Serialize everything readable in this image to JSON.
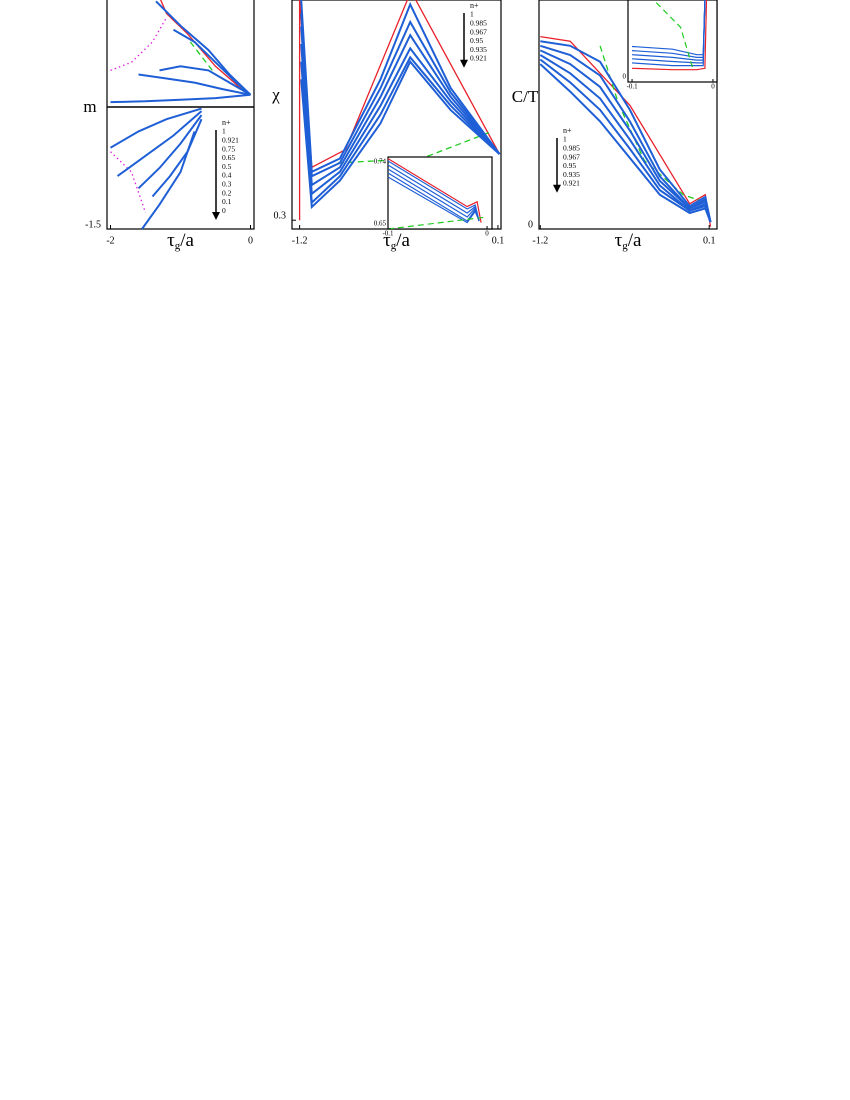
{
  "chart_data": [
    {
      "type": "line",
      "ylabel": "m",
      "xlabel": [
        "τ",
        "g",
        "/a"
      ],
      "xlim": [
        -2.05,
        0.05
      ],
      "ylim": [
        -1.5,
        1.5
      ],
      "xticks": [
        -2,
        0
      ],
      "yticks": [
        -1.5
      ],
      "legend_title": "n+",
      "series": [
        {
          "name": "1",
          "color": "#1f5fd6",
          "x": [
            -1.35,
            -1.0,
            -0.6,
            -0.3,
            0
          ],
          "values": [
            1.3,
            1.0,
            0.7,
            0.4,
            0.15
          ]
        },
        {
          "name": "0.921",
          "color": "#1f5fd6",
          "x": [
            -1.1,
            -0.8,
            -0.5,
            -0.2,
            0
          ],
          "values": [
            0.95,
            0.8,
            0.55,
            0.3,
            0.15
          ]
        },
        {
          "name": "0.75",
          "color": "#1f5fd6",
          "x": [
            -1.3,
            -1.0,
            -0.6,
            -0.3,
            0
          ],
          "values": [
            0.45,
            0.5,
            0.45,
            0.3,
            0.15
          ]
        },
        {
          "name": "0.65",
          "color": "#1f5fd6",
          "x": [
            -1.6,
            -1.2,
            -0.8,
            -0.4,
            0
          ],
          "values": [
            0.4,
            0.35,
            0.3,
            0.22,
            0.15
          ]
        },
        {
          "name": "0.5",
          "color": "#1f5fd6",
          "x": [
            -2,
            -1.5,
            -1,
            -0.5,
            0
          ],
          "values": [
            0.06,
            0.07,
            0.09,
            0.11,
            0.15
          ]
        },
        {
          "name": "0.4",
          "color": "#1f5fd6",
          "x": [
            -2,
            -1.6,
            -1.2,
            -0.7
          ],
          "values": [
            -0.5,
            -0.3,
            -0.15,
            -0.02
          ]
        },
        {
          "name": "0.3",
          "color": "#1f5fd6",
          "x": [
            -1.9,
            -1.5,
            -1.1,
            -0.7
          ],
          "values": [
            -0.85,
            -0.6,
            -0.35,
            -0.05
          ]
        },
        {
          "name": "0.2",
          "color": "#1f5fd6",
          "x": [
            -1.6,
            -1.3,
            -1.0,
            -0.7
          ],
          "values": [
            -1.0,
            -0.75,
            -0.45,
            -0.1
          ]
        },
        {
          "name": "0.1",
          "color": "#1f5fd6",
          "x": [
            -1.4,
            -1.15,
            -0.9,
            -0.7
          ],
          "values": [
            -1.1,
            -0.85,
            -0.55,
            -0.15
          ]
        },
        {
          "name": "0",
          "color": "#1f5fd6",
          "x": [
            -1.55,
            -1.3,
            -1.0,
            -0.8
          ],
          "values": [
            -1.5,
            -1.2,
            -0.8,
            -0.3
          ]
        }
      ],
      "curves": [
        {
          "color": "#e8202a",
          "style": "solid",
          "x": [
            -1.3,
            -1.2,
            -0.9,
            -0.5,
            -0.1,
            0
          ],
          "values": [
            1.35,
            1.15,
            0.9,
            0.5,
            0.2,
            0.15
          ]
        },
        {
          "color": "#22cc22",
          "style": "dashed",
          "x": [
            -0.86,
            -0.5,
            0
          ],
          "values": [
            0.8,
            0.4,
            0.15
          ]
        },
        {
          "color": "#e020e0",
          "style": "dotted",
          "x": [
            -2,
            -1.7,
            -1.4,
            -1.2
          ],
          "values": [
            0.45,
            0.55,
            0.8,
            1.1
          ]
        },
        {
          "color": "#e020e0",
          "style": "dotted",
          "x": [
            -2,
            -1.7,
            -1.5
          ],
          "values": [
            -0.55,
            -0.8,
            -1.3
          ]
        }
      ]
    },
    {
      "type": "line",
      "ylabel": "χ",
      "xlabel": [
        "τ",
        "g",
        "/a"
      ],
      "xlim": [
        -1.25,
        0.12
      ],
      "ylim": [
        0.28,
        0.8
      ],
      "xticks": [
        -1.2,
        0.1
      ],
      "yticks": [
        0.3
      ],
      "legend_title": "n+",
      "series": [
        {
          "name": "1",
          "color": "#1f5fd6",
          "x": [
            -1.19,
            -1.12,
            -0.936,
            -0.67,
            -0.475,
            -0.21,
            0.11
          ],
          "values": [
            0.8,
            0.41,
            0.44,
            0.62,
            0.79,
            0.6,
            0.45
          ]
        },
        {
          "name": "0.985",
          "color": "#1f5fd6",
          "x": [
            -1.19,
            -1.12,
            -0.936,
            -0.67,
            -0.475,
            -0.21,
            0.11
          ],
          "values": [
            0.77,
            0.4,
            0.43,
            0.6,
            0.75,
            0.59,
            0.45
          ]
        },
        {
          "name": "0.967",
          "color": "#1f5fd6",
          "x": [
            -1.19,
            -1.12,
            -0.936,
            -0.67,
            -0.475,
            -0.21,
            0.11
          ],
          "values": [
            0.74,
            0.38,
            0.42,
            0.58,
            0.72,
            0.58,
            0.45
          ]
        },
        {
          "name": "0.95",
          "color": "#1f5fd6",
          "x": [
            -1.19,
            -1.12,
            -0.936,
            -0.67,
            -0.475,
            -0.21,
            0.11
          ],
          "values": [
            0.7,
            0.36,
            0.41,
            0.56,
            0.69,
            0.57,
            0.45
          ]
        },
        {
          "name": "0.935",
          "color": "#1f5fd6",
          "x": [
            -1.19,
            -1.12,
            -0.936,
            -0.67,
            -0.475,
            -0.21,
            0.11
          ],
          "values": [
            0.66,
            0.34,
            0.4,
            0.54,
            0.67,
            0.56,
            0.45
          ]
        },
        {
          "name": "0.921",
          "color": "#1f5fd6",
          "x": [
            -1.19,
            -1.12,
            -0.936,
            -0.67,
            -0.475,
            -0.21,
            0.11
          ],
          "values": [
            0.62,
            0.33,
            0.39,
            0.52,
            0.66,
            0.55,
            0.45
          ]
        }
      ],
      "curves": [
        {
          "color": "#e8202a",
          "style": "solid",
          "x": [
            -1.2,
            -1.2,
            -1.12,
            -0.9,
            -0.47,
            0.11
          ],
          "values": [
            0.3,
            0.8,
            0.42,
            0.46,
            0.82,
            0.45
          ]
        },
        {
          "color": "#22cc22",
          "style": "dashed",
          "x": [
            -0.95,
            -0.4,
            0.05
          ],
          "values": [
            0.43,
            0.44,
            0.5
          ]
        }
      ],
      "inset": {
        "xlim": [
          -0.1,
          0.005
        ],
        "ylim": [
          0.65,
          0.74
        ],
        "xticks": [
          -0.1,
          0
        ],
        "yticks": [
          0.74,
          0.65
        ],
        "curves": [
          {
            "color": "#1f5fd6",
            "style": "solid",
            "x": [
              -0.1,
              -0.02,
              -0.012,
              -0.008
            ],
            "values": [
              0.735,
              0.675,
              0.68,
              0.66
            ]
          },
          {
            "color": "#1f5fd6",
            "style": "solid",
            "x": [
              -0.1,
              -0.02,
              -0.012,
              -0.008
            ],
            "values": [
              0.73,
              0.67,
              0.678,
              0.66
            ]
          },
          {
            "color": "#1f5fd6",
            "style": "solid",
            "x": [
              -0.1,
              -0.02,
              -0.012,
              -0.008
            ],
            "values": [
              0.725,
              0.665,
              0.676,
              0.66
            ]
          },
          {
            "color": "#1f5fd6",
            "style": "solid",
            "x": [
              -0.1,
              -0.02,
              -0.012,
              -0.008
            ],
            "values": [
              0.72,
              0.66,
              0.674,
              0.66
            ]
          },
          {
            "color": "#1f5fd6",
            "style": "solid",
            "x": [
              -0.1,
              -0.02,
              -0.012,
              -0.008
            ],
            "values": [
              0.715,
              0.658,
              0.672,
              0.66
            ]
          },
          {
            "color": "#e8202a",
            "style": "solid",
            "x": [
              -0.1,
              -0.02,
              -0.01,
              -0.006
            ],
            "values": [
              0.738,
              0.678,
              0.684,
              0.658
            ]
          },
          {
            "color": "#22cc22",
            "style": "dashed",
            "x": [
              -0.1,
              0
            ],
            "values": [
              0.65,
              0.665
            ]
          }
        ]
      }
    },
    {
      "type": "line",
      "ylabel": "C/T",
      "xlabel": [
        "τ",
        "g",
        "/a"
      ],
      "xlim": [
        -1.21,
        0.16
      ],
      "ylim": [
        0,
        1
      ],
      "xticks": [
        -1.2,
        0.1
      ],
      "yticks": [
        0
      ],
      "legend_title": "n+",
      "series": [
        {
          "name": "1",
          "color": "#1f5fd6",
          "x": [
            -1.2,
            -0.97,
            -0.74,
            -0.51,
            -0.28,
            -0.05,
            0.07,
            0.11
          ],
          "values": [
            0.82,
            0.8,
            0.73,
            0.52,
            0.26,
            0.1,
            0.14,
            0.03
          ]
        },
        {
          "name": "0.985",
          "color": "#1f5fd6",
          "x": [
            -1.2,
            -0.97,
            -0.74,
            -0.51,
            -0.28,
            -0.05,
            0.07,
            0.11
          ],
          "values": [
            0.8,
            0.76,
            0.67,
            0.47,
            0.23,
            0.09,
            0.13,
            0.03
          ]
        },
        {
          "name": "0.967",
          "color": "#1f5fd6",
          "x": [
            -1.2,
            -0.97,
            -0.74,
            -0.51,
            -0.28,
            -0.05,
            0.07,
            0.11
          ],
          "values": [
            0.78,
            0.72,
            0.62,
            0.43,
            0.21,
            0.09,
            0.12,
            0.03
          ]
        },
        {
          "name": "0.95",
          "color": "#1f5fd6",
          "x": [
            -1.2,
            -0.97,
            -0.74,
            -0.51,
            -0.28,
            -0.05,
            0.07,
            0.11
          ],
          "values": [
            0.76,
            0.68,
            0.57,
            0.39,
            0.19,
            0.08,
            0.11,
            0.03
          ]
        },
        {
          "name": "0.935",
          "color": "#1f5fd6",
          "x": [
            -1.2,
            -0.97,
            -0.74,
            -0.51,
            -0.28,
            -0.05,
            0.07,
            0.11
          ],
          "values": [
            0.74,
            0.64,
            0.52,
            0.35,
            0.17,
            0.08,
            0.1,
            0.03
          ]
        },
        {
          "name": "0.921",
          "color": "#1f5fd6",
          "x": [
            -1.2,
            -0.97,
            -0.74,
            -0.51,
            -0.28,
            -0.05,
            0.07,
            0.11
          ],
          "values": [
            0.72,
            0.6,
            0.47,
            0.31,
            0.15,
            0.07,
            0.09,
            0.03
          ]
        }
      ],
      "curves": [
        {
          "color": "#e8202a",
          "style": "solid",
          "x": [
            -1.2,
            -0.97,
            -0.51,
            -0.05,
            0.07,
            0.11
          ],
          "values": [
            0.84,
            0.82,
            0.54,
            0.11,
            0.15,
            0.01
          ]
        },
        {
          "color": "#22cc22",
          "style": "dashed",
          "x": [
            -0.74,
            -0.6,
            -0.4,
            -0.1,
            0.05
          ],
          "values": [
            0.8,
            0.55,
            0.3,
            0.15,
            0.12
          ]
        }
      ],
      "inset": {
        "xlim": [
          -0.105,
          0.005
        ],
        "ylim": [
          0,
          0.3
        ],
        "xticks": [
          -0.1,
          0
        ],
        "yticks": [
          0
        ],
        "curves": [
          {
            "color": "#1f5fd6",
            "style": "solid",
            "x": [
              -0.1,
              -0.05,
              -0.02,
              -0.012,
              -0.01
            ],
            "values": [
              0.13,
              0.12,
              0.1,
              0.1,
              0.3
            ]
          },
          {
            "color": "#1f5fd6",
            "style": "solid",
            "x": [
              -0.1,
              -0.05,
              -0.02,
              -0.012,
              -0.01
            ],
            "values": [
              0.115,
              0.105,
              0.09,
              0.09,
              0.3
            ]
          },
          {
            "color": "#1f5fd6",
            "style": "solid",
            "x": [
              -0.1,
              -0.05,
              -0.02,
              -0.012,
              -0.01
            ],
            "values": [
              0.1,
              0.09,
              0.08,
              0.08,
              0.3
            ]
          },
          {
            "color": "#1f5fd6",
            "style": "solid",
            "x": [
              -0.1,
              -0.05,
              -0.02,
              -0.012,
              -0.01
            ],
            "values": [
              0.085,
              0.075,
              0.07,
              0.07,
              0.3
            ]
          },
          {
            "color": "#1f5fd6",
            "style": "solid",
            "x": [
              -0.1,
              -0.05,
              -0.02,
              -0.012,
              -0.01
            ],
            "values": [
              0.07,
              0.06,
              0.06,
              0.06,
              0.3
            ]
          },
          {
            "color": "#e8202a",
            "style": "solid",
            "x": [
              -0.1,
              -0.05,
              -0.02,
              -0.01,
              -0.008
            ],
            "values": [
              0.05,
              0.045,
              0.045,
              0.05,
              0.3
            ]
          },
          {
            "color": "#22cc22",
            "style": "dashed",
            "x": [
              -0.07,
              -0.04,
              -0.025
            ],
            "values": [
              0.29,
              0.2,
              0.05
            ]
          }
        ]
      }
    }
  ]
}
